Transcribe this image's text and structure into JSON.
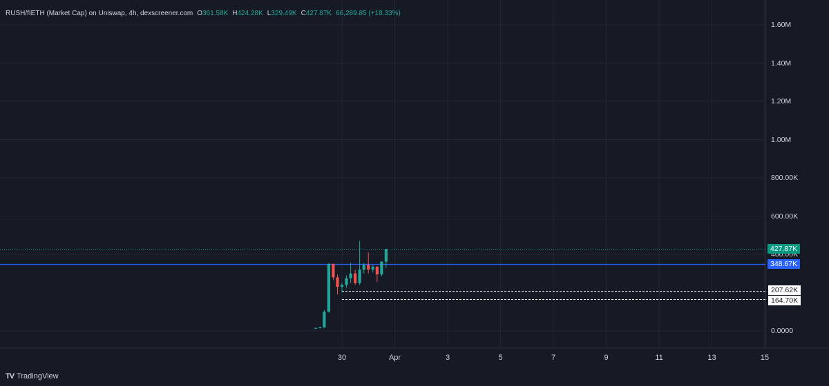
{
  "legend": {
    "symbol": "RUSH/fIETH (Market Cap) on Uniswap, 4h, dexscreener.com",
    "o_key": "O",
    "o_val": "361.58K",
    "h_key": "H",
    "h_val": "424.28K",
    "l_key": "L",
    "l_val": "329.49K",
    "c_key": "C",
    "c_val": "427.87K",
    "change": "66,289.85 (+18.33%)"
  },
  "colors": {
    "background": "#161a25",
    "grid": "#232734",
    "up": "#26a69a",
    "down": "#ef5350",
    "hline": "#2962ff",
    "text": "#d1d4dc"
  },
  "brand": {
    "logo": "TV",
    "name": "TradingView"
  },
  "chart_data": {
    "type": "candlestick",
    "y_unit": "market cap (USD)",
    "ylim": [
      -80000,
      1680000
    ],
    "y_ticks": [
      {
        "value": 0,
        "label": "0.0000"
      },
      {
        "value": 400000,
        "label": "400.00K"
      },
      {
        "value": 600000,
        "label": "600.00K"
      },
      {
        "value": 800000,
        "label": "800.00K"
      },
      {
        "value": 1000000,
        "label": "1.00M"
      },
      {
        "value": 1200000,
        "label": "1.20M"
      },
      {
        "value": 1400000,
        "label": "1.40M"
      },
      {
        "value": 1600000,
        "label": "1.60M"
      }
    ],
    "x_axis_range_days": [
      24.4,
      15.3
    ],
    "x_ticks": [
      {
        "day": 30,
        "label": "30"
      },
      {
        "day": 32,
        "label": "Apr"
      },
      {
        "day": 34,
        "label": "3"
      },
      {
        "day": 36,
        "label": "5"
      },
      {
        "day": 38,
        "label": "7"
      },
      {
        "day": 40,
        "label": "9"
      },
      {
        "day": 42,
        "label": "11"
      },
      {
        "day": 44,
        "label": "13"
      },
      {
        "day": 46,
        "label": "15"
      }
    ],
    "grid": true,
    "candles": [
      {
        "day": 29.0,
        "o": 12000,
        "h": 18000,
        "l": 10000,
        "c": 15000
      },
      {
        "day": 29.17,
        "o": 15000,
        "h": 22000,
        "l": 12000,
        "c": 18000
      },
      {
        "day": 29.33,
        "o": 18000,
        "h": 110000,
        "l": 15000,
        "c": 100000
      },
      {
        "day": 29.5,
        "o": 100000,
        "h": 355000,
        "l": 95000,
        "c": 350000
      },
      {
        "day": 29.67,
        "o": 350000,
        "h": 352000,
        "l": 265000,
        "c": 280000
      },
      {
        "day": 29.83,
        "o": 280000,
        "h": 295000,
        "l": 190000,
        "c": 230000
      },
      {
        "day": 30.0,
        "o": 230000,
        "h": 250000,
        "l": 200000,
        "c": 240000
      },
      {
        "day": 30.17,
        "o": 240000,
        "h": 290000,
        "l": 225000,
        "c": 275000
      },
      {
        "day": 30.33,
        "o": 275000,
        "h": 355000,
        "l": 250000,
        "c": 300000
      },
      {
        "day": 30.5,
        "o": 300000,
        "h": 320000,
        "l": 240000,
        "c": 250000
      },
      {
        "day": 30.67,
        "o": 250000,
        "h": 470000,
        "l": 240000,
        "c": 320000
      },
      {
        "day": 30.83,
        "o": 320000,
        "h": 355000,
        "l": 300000,
        "c": 345000
      },
      {
        "day": 31.0,
        "o": 345000,
        "h": 410000,
        "l": 300000,
        "c": 320000
      },
      {
        "day": 31.17,
        "o": 320000,
        "h": 345000,
        "l": 305000,
        "c": 335000
      },
      {
        "day": 31.33,
        "o": 335000,
        "h": 340000,
        "l": 255000,
        "c": 295000
      },
      {
        "day": 31.5,
        "o": 295000,
        "h": 365000,
        "l": 285000,
        "c": 361580
      },
      {
        "day": 31.67,
        "o": 361580,
        "h": 424280,
        "l": 329490,
        "c": 427870
      }
    ],
    "price_lines": [
      {
        "value": 427870,
        "label": "427.87K",
        "style": "dotted",
        "kind": "last"
      },
      {
        "value": 348670,
        "label": "348.67K",
        "style": "solid",
        "kind": "horizontal"
      },
      {
        "value": 207620,
        "label": "207.62K",
        "style": "dashed",
        "kind": "light",
        "from_day": 30.0
      },
      {
        "value": 164700,
        "label": "164.70K",
        "style": "dashed",
        "kind": "light",
        "from_day": 30.0
      }
    ]
  }
}
